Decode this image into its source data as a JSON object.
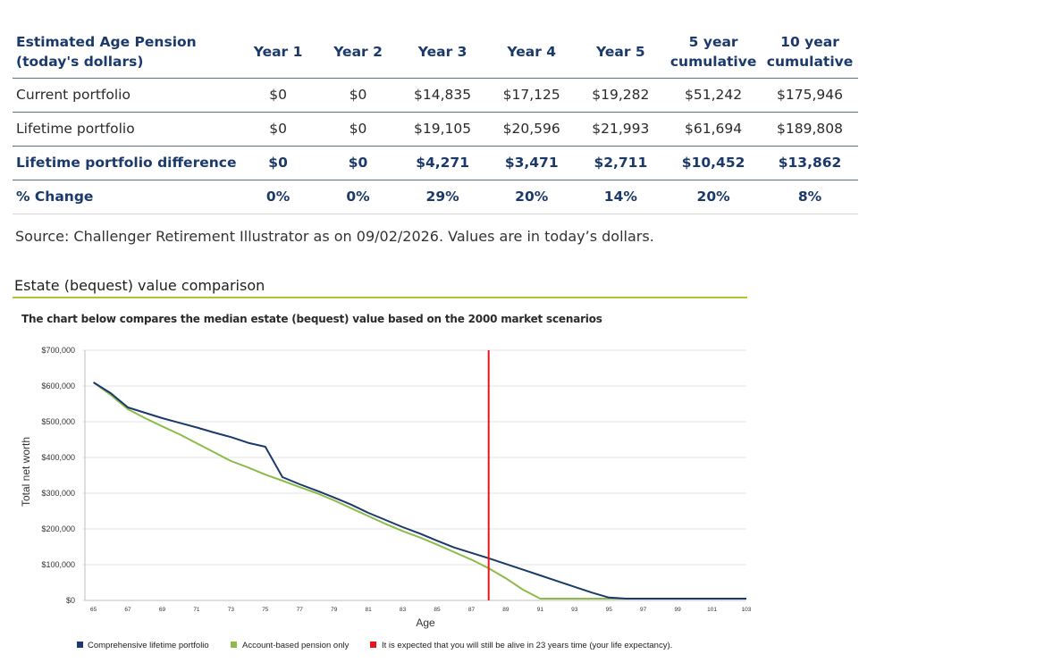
{
  "table": {
    "header": {
      "label": "Estimated Age Pension (today's dollars)",
      "columns": [
        "Year 1",
        "Year 2",
        "Year 3",
        "Year 4",
        "Year 5",
        "5 year cumulative",
        "10 year cumulative"
      ]
    },
    "rows": [
      {
        "label": "Current portfolio",
        "values": [
          "$0",
          "$0",
          "$14,835",
          "$17,125",
          "$19,282",
          "$51,242",
          "$175,946"
        ]
      },
      {
        "label": "Lifetime portfolio",
        "values": [
          "$0",
          "$0",
          "$19,105",
          "$20,596",
          "$21,993",
          "$61,694",
          "$189,808"
        ]
      },
      {
        "label": "Lifetime portfolio difference",
        "values": [
          "$0",
          "$0",
          "$4,271",
          "$3,471",
          "$2,711",
          "$10,452",
          "$13,862"
        ]
      },
      {
        "label": "% Change",
        "values": [
          "0%",
          "0%",
          "29%",
          "20%",
          "14%",
          "20%",
          "8%"
        ]
      }
    ]
  },
  "source_note": "Source: Challenger Retirement Illustrator as on 09/02/2026. Values are in today’s dollars.",
  "section_title": "Estate (bequest) value comparison",
  "chart_subtitle": "The chart below compares the median estate (bequest) value based on the 2000 market scenarios",
  "colors": {
    "navy": "#1b3a6b",
    "green": "#8dbb4a",
    "red": "#e8141b",
    "rule": "#b3c431",
    "grid": "#e6e6e6"
  },
  "chart_data": {
    "type": "line",
    "title": "Estate (bequest) value comparison",
    "xlabel": "Age",
    "ylabel": "Total net worth",
    "xlim": [
      64.5,
      103
    ],
    "ylim": [
      0,
      700000
    ],
    "x_ticks": [
      "65",
      "67",
      "69",
      "71",
      "73",
      "75",
      "77",
      "79",
      "81",
      "83",
      "85",
      "87",
      "89",
      "91",
      "93",
      "95",
      "97",
      "99",
      "101",
      "103"
    ],
    "y_ticks": [
      "$0",
      "$100,000",
      "$200,000",
      "$300,000",
      "$400,000",
      "$500,000",
      "$600,000",
      "$700,000"
    ],
    "y_tick_values": [
      0,
      100000,
      200000,
      300000,
      400000,
      500000,
      600000,
      700000
    ],
    "grid": "horizontal",
    "series": [
      {
        "name": "Comprehensive lifetime portfolio",
        "color": "#1b3a6b",
        "x": [
          65,
          66,
          67,
          68,
          69,
          70,
          71,
          72,
          73,
          74,
          75,
          76,
          77,
          78,
          79,
          80,
          81,
          82,
          83,
          84,
          85,
          86,
          87,
          88,
          89,
          90,
          91,
          92,
          93,
          94,
          95,
          96,
          97,
          98,
          99,
          100,
          101,
          102,
          103
        ],
        "y": [
          610000,
          580000,
          540000,
          525000,
          510000,
          497000,
          484000,
          470000,
          457000,
          441000,
          430000,
          345000,
          325000,
          307000,
          288000,
          268000,
          245000,
          225000,
          205000,
          187000,
          167000,
          148000,
          133000,
          118000,
          102000,
          86000,
          70000,
          54000,
          38000,
          22000,
          8000,
          5000,
          5000,
          5000,
          5000,
          5000,
          5000,
          5000,
          5000
        ]
      },
      {
        "name": "Account-based pension only",
        "color": "#8dbb4a",
        "x": [
          65,
          66,
          67,
          68,
          69,
          70,
          71,
          72,
          73,
          74,
          75,
          76,
          77,
          78,
          79,
          80,
          81,
          82,
          83,
          84,
          85,
          86,
          87,
          88,
          89,
          90,
          91,
          92,
          93,
          94,
          95,
          96,
          97,
          98,
          99,
          100,
          101,
          102,
          103
        ],
        "y": [
          610000,
          575000,
          535000,
          510000,
          487000,
          465000,
          440000,
          415000,
          390000,
          372000,
          352000,
          335000,
          317000,
          300000,
          280000,
          258000,
          236000,
          214000,
          194000,
          176000,
          156000,
          135000,
          114000,
          90000,
          62000,
          30000,
          5000,
          5000,
          5000,
          5000,
          5000,
          5000,
          5000,
          5000,
          5000,
          5000,
          5000,
          5000,
          5000
        ]
      }
    ],
    "marker_line": {
      "x": 88,
      "color": "#e8141b"
    },
    "legend": [
      {
        "label": "Comprehensive lifetime portfolio",
        "color": "#1b3a6b"
      },
      {
        "label": "Account-based pension only",
        "color": "#8dbb4a"
      },
      {
        "label": "It is expected that you will still be alive in 23 years time (your life expectancy).",
        "color": "#e8141b"
      }
    ],
    "legend_position": "bottom"
  }
}
